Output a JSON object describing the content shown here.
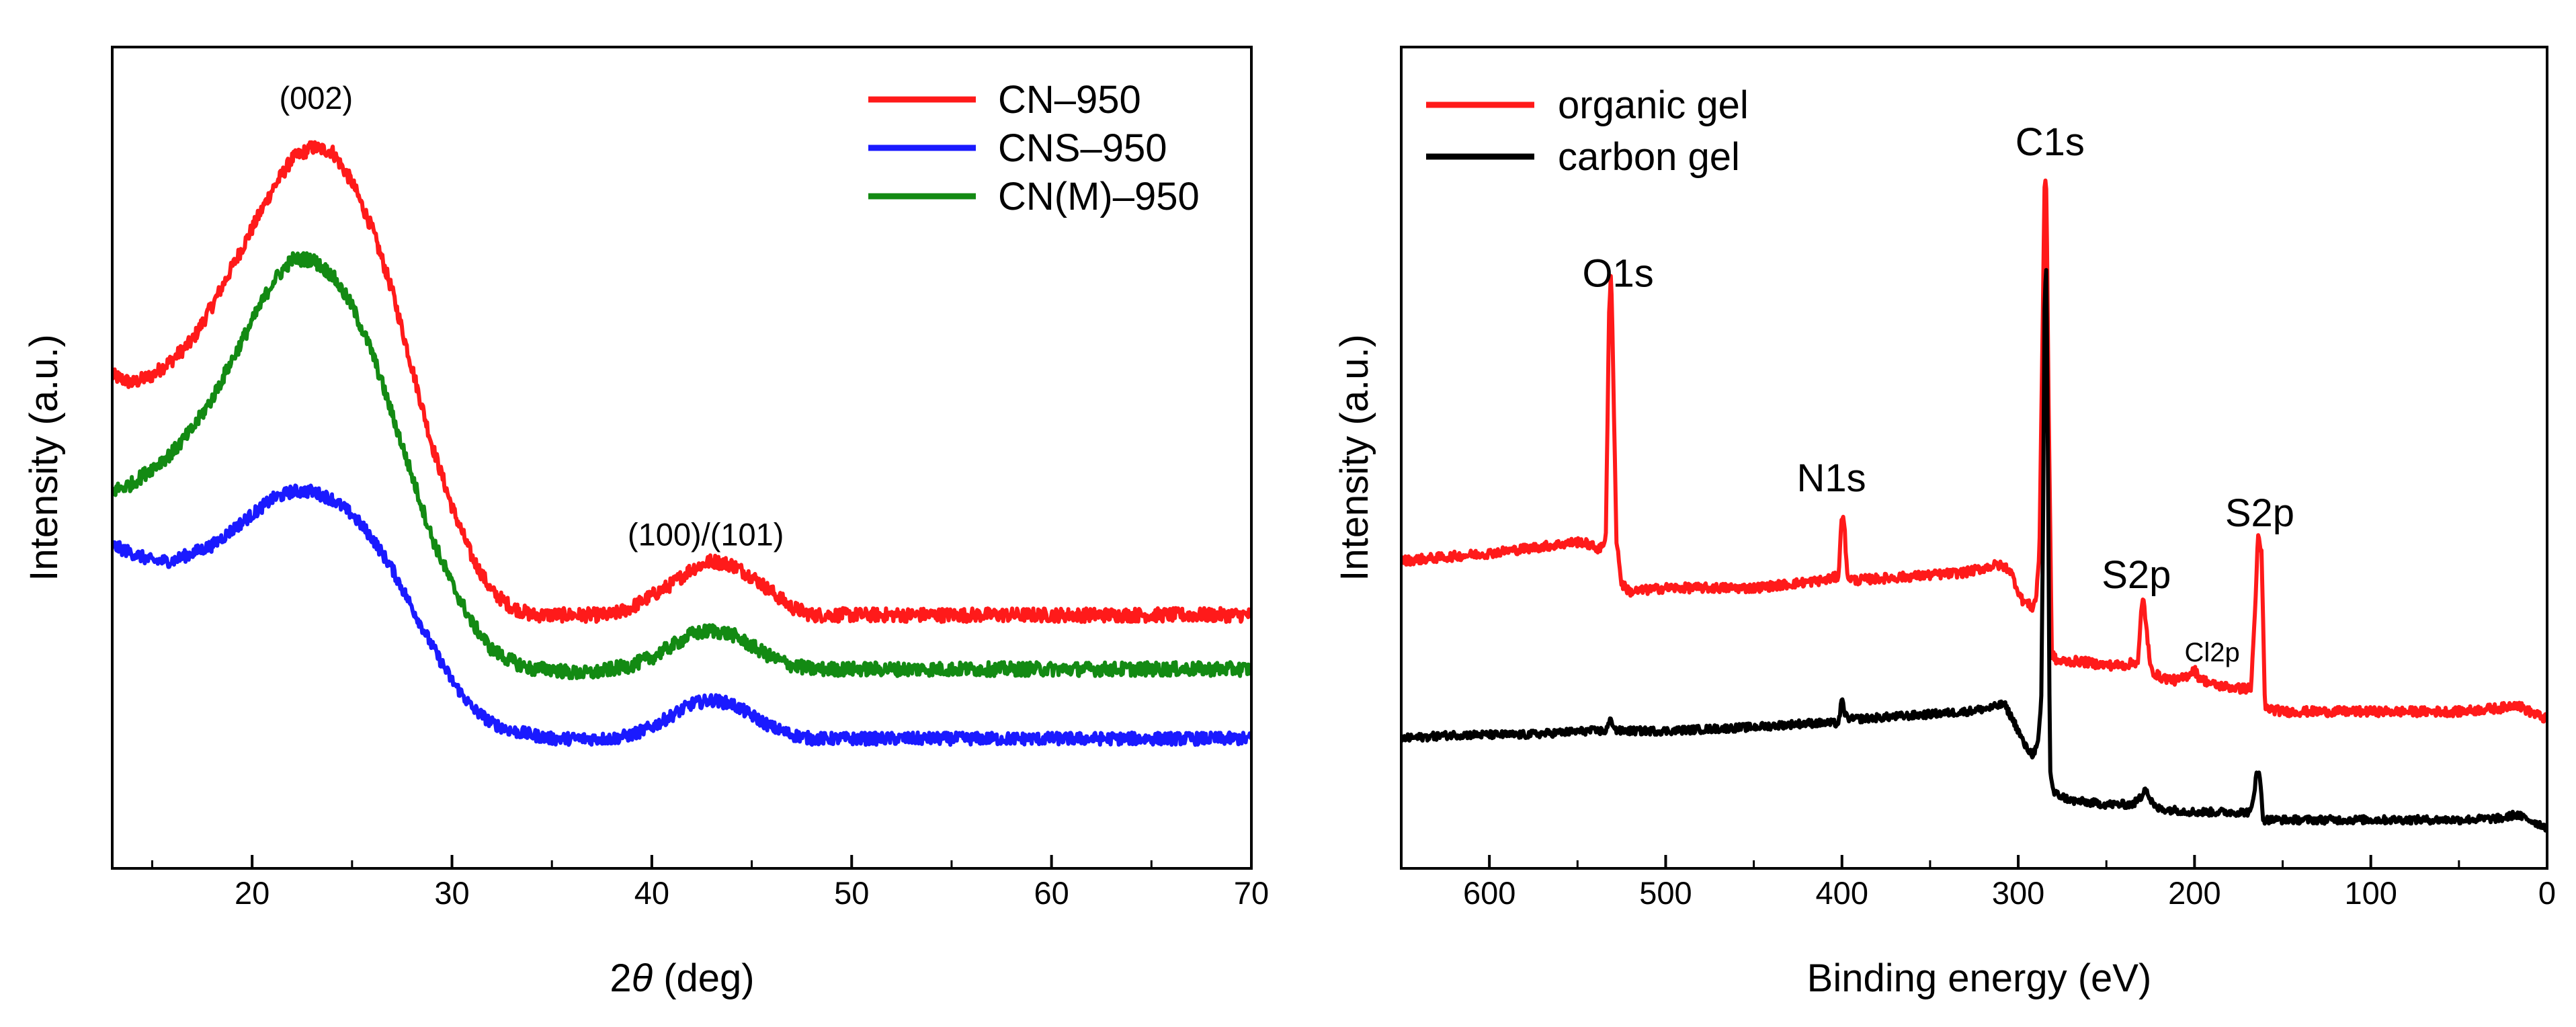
{
  "chart_data": [
    {
      "type": "line",
      "id": "xrd",
      "title": "",
      "xlabel_prefix": "2",
      "xlabel_symbol": "θ",
      "xlabel_suffix": " (deg)",
      "ylabel": "Intensity (a.u.)",
      "xlim": [
        13,
        70
      ],
      "ylim": [
        0,
        1
      ],
      "xticks": [
        "20",
        "30",
        "40",
        "50",
        "60",
        "70"
      ],
      "yticks_shown": false,
      "legend_position": "top-right",
      "series": [
        {
          "name": "CN–950",
          "color": "#ff1a1a",
          "noise": 0.009,
          "points": [
            [
              13,
              0.61
            ],
            [
              14,
              0.6
            ],
            [
              15,
              0.61
            ],
            [
              16,
              0.63
            ],
            [
              17,
              0.655
            ],
            [
              18,
              0.7
            ],
            [
              19,
              0.75
            ],
            [
              20,
              0.8
            ],
            [
              21,
              0.85
            ],
            [
              22,
              0.89
            ],
            [
              23,
              0.905
            ],
            [
              24,
              0.9
            ],
            [
              25,
              0.86
            ],
            [
              26,
              0.8
            ],
            [
              27,
              0.72
            ],
            [
              28,
              0.62
            ],
            [
              29,
              0.52
            ],
            [
              30,
              0.44
            ],
            [
              31,
              0.375
            ],
            [
              32,
              0.33
            ],
            [
              33,
              0.31
            ],
            [
              34,
              0.3
            ],
            [
              35,
              0.3
            ],
            [
              36,
              0.3
            ],
            [
              37,
              0.3
            ],
            [
              38,
              0.3
            ],
            [
              39,
              0.31
            ],
            [
              40,
              0.325
            ],
            [
              41,
              0.34
            ],
            [
              42,
              0.36
            ],
            [
              43,
              0.37
            ],
            [
              44,
              0.365
            ],
            [
              45,
              0.35
            ],
            [
              46,
              0.33
            ],
            [
              47,
              0.31
            ],
            [
              48,
              0.3
            ],
            [
              50,
              0.3
            ],
            [
              52,
              0.3
            ],
            [
              55,
              0.3
            ],
            [
              60,
              0.3
            ],
            [
              65,
              0.3
            ],
            [
              70,
              0.3
            ]
          ]
        },
        {
          "name": "CNS–950",
          "color": "#1a1aff",
          "noise": 0.008,
          "points": [
            [
              13,
              0.39
            ],
            [
              14,
              0.38
            ],
            [
              15,
              0.37
            ],
            [
              16,
              0.37
            ],
            [
              17,
              0.38
            ],
            [
              18,
              0.39
            ],
            [
              19,
              0.41
            ],
            [
              20,
              0.43
            ],
            [
              21,
              0.45
            ],
            [
              22,
              0.46
            ],
            [
              23,
              0.46
            ],
            [
              24,
              0.45
            ],
            [
              25,
              0.43
            ],
            [
              26,
              0.4
            ],
            [
              27,
              0.36
            ],
            [
              28,
              0.31
            ],
            [
              29,
              0.26
            ],
            [
              30,
              0.215
            ],
            [
              31,
              0.18
            ],
            [
              32,
              0.16
            ],
            [
              33,
              0.15
            ],
            [
              34,
              0.145
            ],
            [
              35,
              0.14
            ],
            [
              36,
              0.14
            ],
            [
              37,
              0.14
            ],
            [
              38,
              0.14
            ],
            [
              39,
              0.145
            ],
            [
              40,
              0.155
            ],
            [
              41,
              0.17
            ],
            [
              42,
              0.185
            ],
            [
              43,
              0.19
            ],
            [
              44,
              0.185
            ],
            [
              45,
              0.17
            ],
            [
              46,
              0.155
            ],
            [
              47,
              0.145
            ],
            [
              48,
              0.14
            ],
            [
              50,
              0.14
            ],
            [
              52,
              0.14
            ],
            [
              55,
              0.14
            ],
            [
              60,
              0.14
            ],
            [
              65,
              0.14
            ],
            [
              70,
              0.14
            ]
          ]
        },
        {
          "name": "CN(M)–950",
          "color": "#138a13",
          "noise": 0.009,
          "points": [
            [
              13,
              0.46
            ],
            [
              14,
              0.47
            ],
            [
              15,
              0.49
            ],
            [
              16,
              0.51
            ],
            [
              17,
              0.54
            ],
            [
              18,
              0.58
            ],
            [
              19,
              0.63
            ],
            [
              20,
              0.68
            ],
            [
              21,
              0.73
            ],
            [
              22,
              0.76
            ],
            [
              23,
              0.76
            ],
            [
              24,
              0.74
            ],
            [
              25,
              0.7
            ],
            [
              26,
              0.64
            ],
            [
              27,
              0.56
            ],
            [
              28,
              0.48
            ],
            [
              29,
              0.4
            ],
            [
              30,
              0.34
            ],
            [
              31,
              0.29
            ],
            [
              32,
              0.255
            ],
            [
              33,
              0.24
            ],
            [
              34,
              0.23
            ],
            [
              35,
              0.23
            ],
            [
              36,
              0.225
            ],
            [
              37,
              0.225
            ],
            [
              38,
              0.23
            ],
            [
              39,
              0.235
            ],
            [
              40,
              0.245
            ],
            [
              41,
              0.26
            ],
            [
              42,
              0.275
            ],
            [
              43,
              0.28
            ],
            [
              44,
              0.275
            ],
            [
              45,
              0.26
            ],
            [
              46,
              0.245
            ],
            [
              47,
              0.235
            ],
            [
              48,
              0.23
            ],
            [
              50,
              0.23
            ],
            [
              52,
              0.23
            ],
            [
              55,
              0.23
            ],
            [
              60,
              0.23
            ],
            [
              65,
              0.23
            ],
            [
              70,
              0.23
            ]
          ]
        }
      ],
      "annotations": [
        {
          "text": "(002)",
          "x": 23.2,
          "y": 0.955
        },
        {
          "text": "(100)/(101)",
          "x": 42.7,
          "y": 0.39
        }
      ]
    },
    {
      "type": "line",
      "id": "xps",
      "title": "",
      "xlabel": "Binding energy (eV)",
      "ylabel": "Intensity (a.u.)",
      "xlim": [
        650,
        0
      ],
      "ylim": [
        0,
        1
      ],
      "xticks": [
        "600",
        "500",
        "400",
        "300",
        "200",
        "100",
        "0"
      ],
      "yticks_shown": false,
      "legend_position": "top-left",
      "series": [
        {
          "name": "organic gel",
          "color": "#ff1a1a",
          "noise": 0.006,
          "points": [
            [
              650,
              0.37
            ],
            [
              600,
              0.38
            ],
            [
              565,
              0.39
            ],
            [
              548,
              0.395
            ],
            [
              537,
              0.385
            ],
            [
              534,
              0.4
            ],
            [
              532,
              0.7
            ],
            [
              531,
              0.74
            ],
            [
              530,
              0.65
            ],
            [
              528,
              0.4
            ],
            [
              525,
              0.34
            ],
            [
              520,
              0.33
            ],
            [
              500,
              0.335
            ],
            [
              450,
              0.335
            ],
            [
              410,
              0.345
            ],
            [
              402,
              0.35
            ],
            [
              400,
              0.43
            ],
            [
              399,
              0.43
            ],
            [
              397,
              0.35
            ],
            [
              393,
              0.345
            ],
            [
              360,
              0.35
            ],
            [
              330,
              0.355
            ],
            [
              312,
              0.365
            ],
            [
              305,
              0.36
            ],
            [
              298,
              0.32
            ],
            [
              292,
              0.31
            ],
            [
              290,
              0.32
            ],
            [
              288,
              0.38
            ],
            [
              286,
              0.7
            ],
            [
              285,
              0.87
            ],
            [
              284,
              0.85
            ],
            [
              283,
              0.62
            ],
            [
              281,
              0.25
            ],
            [
              278,
              0.24
            ],
            [
              265,
              0.24
            ],
            [
              250,
              0.235
            ],
            [
              240,
              0.235
            ],
            [
              232,
              0.24
            ],
            [
              230,
              0.31
            ],
            [
              229,
              0.32
            ],
            [
              228,
              0.3
            ],
            [
              225,
              0.23
            ],
            [
              220,
              0.22
            ],
            [
              210,
              0.215
            ],
            [
              205,
              0.22
            ],
            [
              200,
              0.23
            ],
            [
              198,
              0.22
            ],
            [
              190,
              0.21
            ],
            [
              175,
              0.205
            ],
            [
              168,
              0.205
            ],
            [
              166,
              0.29
            ],
            [
              164,
              0.4
            ],
            [
              162,
              0.38
            ],
            [
              160,
              0.18
            ],
            [
              150,
              0.175
            ],
            [
              100,
              0.175
            ],
            [
              50,
              0.175
            ],
            [
              25,
              0.18
            ],
            [
              18,
              0.185
            ],
            [
              10,
              0.175
            ],
            [
              0,
              0.165
            ]
          ]
        },
        {
          "name": "carbon gel",
          "color": "#000000",
          "noise": 0.005,
          "points": [
            [
              650,
              0.14
            ],
            [
              620,
              0.145
            ],
            [
              580,
              0.145
            ],
            [
              545,
              0.15
            ],
            [
              534,
              0.15
            ],
            [
              531,
              0.165
            ],
            [
              528,
              0.15
            ],
            [
              500,
              0.15
            ],
            [
              450,
              0.155
            ],
            [
              420,
              0.16
            ],
            [
              402,
              0.16
            ],
            [
              400,
              0.19
            ],
            [
              398,
              0.17
            ],
            [
              395,
              0.165
            ],
            [
              360,
              0.17
            ],
            [
              330,
              0.175
            ],
            [
              315,
              0.18
            ],
            [
              308,
              0.185
            ],
            [
              302,
              0.16
            ],
            [
              296,
              0.13
            ],
            [
              292,
              0.12
            ],
            [
              289,
              0.13
            ],
            [
              287,
              0.18
            ],
            [
              286,
              0.4
            ],
            [
              285,
              0.72
            ],
            [
              284,
              0.75
            ],
            [
              283,
              0.45
            ],
            [
              282,
              0.1
            ],
            [
              280,
              0.07
            ],
            [
              270,
              0.06
            ],
            [
              250,
              0.055
            ],
            [
              235,
              0.055
            ],
            [
              230,
              0.065
            ],
            [
              228,
              0.08
            ],
            [
              226,
              0.065
            ],
            [
              222,
              0.05
            ],
            [
              200,
              0.045
            ],
            [
              180,
              0.045
            ],
            [
              168,
              0.045
            ],
            [
              166,
              0.07
            ],
            [
              165,
              0.1
            ],
            [
              163,
              0.09
            ],
            [
              161,
              0.035
            ],
            [
              150,
              0.035
            ],
            [
              100,
              0.035
            ],
            [
              50,
              0.035
            ],
            [
              25,
              0.037
            ],
            [
              18,
              0.042
            ],
            [
              10,
              0.035
            ],
            [
              0,
              0.025
            ]
          ]
        }
      ],
      "annotations": [
        {
          "text": "C1s",
          "x": 282,
          "y": 0.895,
          "size": "large"
        },
        {
          "text": "O1s",
          "x": 527,
          "y": 0.725,
          "size": "large"
        },
        {
          "text": "N1s",
          "x": 406,
          "y": 0.46,
          "size": "large"
        },
        {
          "text": "S2p",
          "x": 233,
          "y": 0.335,
          "size": "large"
        },
        {
          "text": "Cl2p",
          "x": 190,
          "y": 0.24,
          "size": "small"
        },
        {
          "text": "S2p",
          "x": 163,
          "y": 0.415,
          "size": "large"
        }
      ]
    }
  ]
}
